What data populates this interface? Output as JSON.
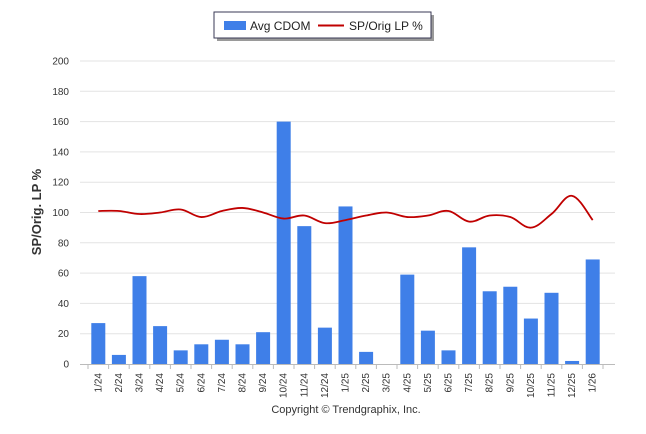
{
  "chart_data": {
    "type": "bar",
    "categories": [
      "1/24",
      "2/24",
      "3/24",
      "4/24",
      "5/24",
      "6/24",
      "7/24",
      "8/24",
      "9/24",
      "10/24",
      "11/24",
      "12/24",
      "1/25",
      "2/25",
      "3/25",
      "4/25",
      "5/25",
      "6/25",
      "7/25",
      "8/25",
      "9/25",
      "10/25",
      "11/25",
      "12/25",
      "1/26"
    ],
    "series": [
      {
        "name": "Avg CDOM",
        "kind": "bar",
        "color": "#3f7fe8",
        "values": [
          27,
          6,
          58,
          25,
          9,
          13,
          16,
          13,
          21,
          160,
          91,
          24,
          104,
          8,
          0,
          59,
          22,
          9,
          77,
          48,
          51,
          30,
          47,
          2,
          69
        ]
      },
      {
        "name": "SP/Orig LP %",
        "kind": "line",
        "color": "#c00000",
        "values": [
          101,
          101,
          99,
          100,
          102,
          97,
          101,
          103,
          100,
          96,
          98,
          93,
          95,
          98,
          100,
          97,
          98,
          101,
          94,
          98,
          97,
          90,
          99,
          111,
          95
        ]
      }
    ],
    "title": "",
    "xlabel": "",
    "ylabel": "SP/Orig. LP %",
    "ylim": [
      0,
      200
    ],
    "yticks": [
      0,
      20,
      40,
      60,
      80,
      100,
      120,
      140,
      160,
      180,
      200
    ],
    "grid": true,
    "legend_position": "top-center",
    "footer": "Copyright © Trendgraphix, Inc."
  }
}
